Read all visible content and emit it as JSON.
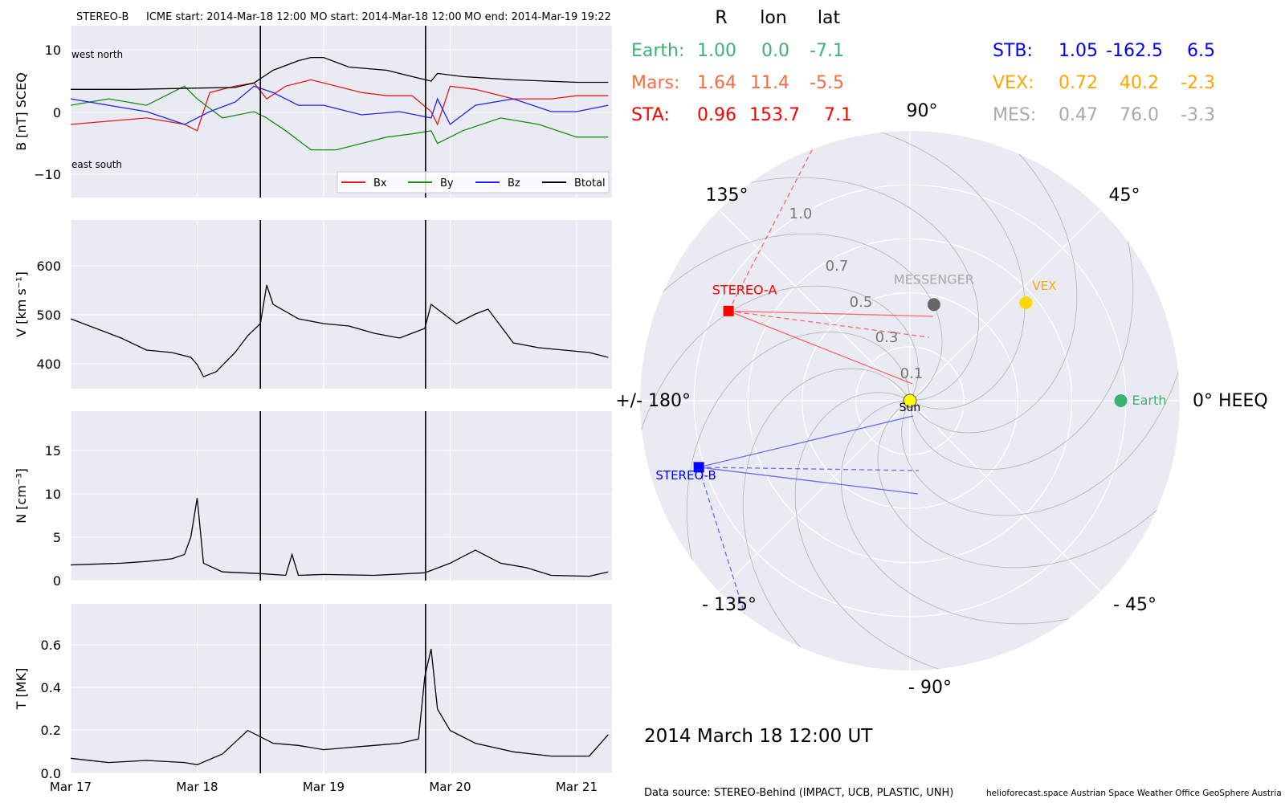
{
  "header": {
    "spacecraft": "STEREO-B",
    "icme_start": "ICME start: 2014-Mar-18 12:00",
    "mo_start": "MO start: 2014-Mar-18 12:00",
    "mo_end": "MO end: 2014-Mar-19 19:22"
  },
  "colors": {
    "panel_bg": "#eaeaf2",
    "grid": "#ffffff",
    "bx": "#e41a1c",
    "by": "#1a8a1a",
    "bz": "#1f1fff",
    "btotal": "#000000",
    "earth": "#3cb371",
    "mars": "#f46d43",
    "sta": "#ff0000",
    "stb": "#0000ff",
    "vex": "#ffa500",
    "mes": "#a9a9a9",
    "sun": "#ffff00"
  },
  "chart_data": [
    {
      "type": "line",
      "ylabel": "B [nT] SCEQ",
      "ylim": [
        -13.5,
        13.5
      ],
      "yticks": [
        "10",
        "0",
        "−10"
      ],
      "annotations": {
        "top_left": "west    north",
        "bottom_left": "east    south"
      },
      "legend_placement": "bottom-right",
      "grid": true,
      "series": [
        {
          "name": "Bx",
          "points": [
            [
              0,
              -2
            ],
            [
              0.3,
              -1.5
            ],
            [
              0.6,
              -1
            ],
            [
              0.9,
              -2
            ],
            [
              1.0,
              -3
            ],
            [
              1.1,
              3
            ],
            [
              1.3,
              4
            ],
            [
              1.45,
              4.5
            ],
            [
              1.55,
              2
            ],
            [
              1.7,
              4
            ],
            [
              1.9,
              5
            ],
            [
              2.1,
              4
            ],
            [
              2.3,
              3
            ],
            [
              2.5,
              2.5
            ],
            [
              2.7,
              2.5
            ],
            [
              2.85,
              0
            ],
            [
              2.9,
              -2
            ],
            [
              3.0,
              4
            ],
            [
              3.2,
              3.5
            ],
            [
              3.5,
              2
            ],
            [
              3.8,
              2
            ],
            [
              4.0,
              2.5
            ],
            [
              4.25,
              2.5
            ]
          ]
        },
        {
          "name": "By",
          "points": [
            [
              0,
              1
            ],
            [
              0.3,
              2
            ],
            [
              0.6,
              1
            ],
            [
              0.9,
              4
            ],
            [
              1.0,
              2
            ],
            [
              1.2,
              -1
            ],
            [
              1.45,
              0
            ],
            [
              1.55,
              -1
            ],
            [
              1.7,
              -3
            ],
            [
              1.9,
              -6
            ],
            [
              2.1,
              -6
            ],
            [
              2.3,
              -5
            ],
            [
              2.5,
              -4
            ],
            [
              2.7,
              -3.5
            ],
            [
              2.85,
              -3
            ],
            [
              2.9,
              -5
            ],
            [
              3.1,
              -3
            ],
            [
              3.4,
              -1
            ],
            [
              3.7,
              -2
            ],
            [
              4.0,
              -4
            ],
            [
              4.25,
              -4
            ]
          ]
        },
        {
          "name": "Bz",
          "points": [
            [
              0,
              2
            ],
            [
              0.3,
              1
            ],
            [
              0.6,
              0
            ],
            [
              0.9,
              -2
            ],
            [
              1.1,
              0
            ],
            [
              1.3,
              1.5
            ],
            [
              1.45,
              4
            ],
            [
              1.6,
              3
            ],
            [
              1.8,
              1
            ],
            [
              2.0,
              1
            ],
            [
              2.3,
              -0.5
            ],
            [
              2.6,
              0
            ],
            [
              2.85,
              -1
            ],
            [
              2.9,
              2
            ],
            [
              3.0,
              -2
            ],
            [
              3.2,
              1
            ],
            [
              3.5,
              2
            ],
            [
              3.8,
              0
            ],
            [
              4.0,
              0
            ],
            [
              4.25,
              1
            ]
          ]
        },
        {
          "name": "Btotal",
          "points": [
            [
              0,
              3.5
            ],
            [
              0.5,
              3.5
            ],
            [
              1.0,
              3.7
            ],
            [
              1.3,
              3.8
            ],
            [
              1.45,
              4.5
            ],
            [
              1.6,
              6.5
            ],
            [
              1.8,
              8
            ],
            [
              1.9,
              8.5
            ],
            [
              2.0,
              8.5
            ],
            [
              2.2,
              7
            ],
            [
              2.5,
              6.5
            ],
            [
              2.7,
              5.5
            ],
            [
              2.85,
              4.8
            ],
            [
              2.9,
              6
            ],
            [
              3.1,
              5.5
            ],
            [
              3.5,
              5
            ],
            [
              4.0,
              4.6
            ],
            [
              4.25,
              4.6
            ]
          ]
        }
      ]
    },
    {
      "type": "line",
      "ylabel": "V [km s⁻¹]",
      "ylim": [
        345,
        695
      ],
      "yticks": [
        "600",
        "500",
        "400"
      ],
      "grid": true,
      "series": [
        {
          "points": [
            [
              0,
              490
            ],
            [
              0.2,
              470
            ],
            [
              0.4,
              450
            ],
            [
              0.6,
              425
            ],
            [
              0.8,
              420
            ],
            [
              0.95,
              410
            ],
            [
              1.0,
              395
            ],
            [
              1.05,
              370
            ],
            [
              1.15,
              380
            ],
            [
              1.3,
              420
            ],
            [
              1.4,
              455
            ],
            [
              1.5,
              480
            ],
            [
              1.55,
              560
            ],
            [
              1.6,
              520
            ],
            [
              1.8,
              490
            ],
            [
              2.0,
              480
            ],
            [
              2.2,
              475
            ],
            [
              2.4,
              460
            ],
            [
              2.6,
              450
            ],
            [
              2.8,
              470
            ],
            [
              2.85,
              520
            ],
            [
              2.95,
              500
            ],
            [
              3.05,
              480
            ],
            [
              3.2,
              500
            ],
            [
              3.3,
              510
            ],
            [
              3.5,
              440
            ],
            [
              3.7,
              430
            ],
            [
              3.9,
              425
            ],
            [
              4.1,
              420
            ],
            [
              4.25,
              410
            ]
          ]
        }
      ]
    },
    {
      "type": "line",
      "ylabel": "N [cm⁻³]",
      "ylim": [
        0,
        19.5
      ],
      "yticks": [
        "15",
        "10",
        "5",
        "0"
      ],
      "grid": true,
      "series": [
        {
          "points": [
            [
              0,
              1.8
            ],
            [
              0.4,
              2
            ],
            [
              0.6,
              2.2
            ],
            [
              0.8,
              2.5
            ],
            [
              0.9,
              3
            ],
            [
              0.95,
              5
            ],
            [
              1.0,
              9.5
            ],
            [
              1.05,
              2
            ],
            [
              1.2,
              1
            ],
            [
              1.5,
              0.8
            ],
            [
              1.7,
              0.6
            ],
            [
              1.75,
              3
            ],
            [
              1.8,
              0.6
            ],
            [
              2.0,
              0.7
            ],
            [
              2.4,
              0.6
            ],
            [
              2.8,
              0.9
            ],
            [
              3.0,
              2
            ],
            [
              3.2,
              3.5
            ],
            [
              3.4,
              2
            ],
            [
              3.6,
              1.5
            ],
            [
              3.8,
              0.6
            ],
            [
              4.1,
              0.5
            ],
            [
              4.25,
              1
            ]
          ]
        }
      ]
    },
    {
      "type": "line",
      "ylabel": "T [MK]",
      "ylim": [
        0,
        0.79
      ],
      "yticks": [
        "0.6",
        "0.4",
        "0.2",
        "0.0"
      ],
      "xticks": [
        "Mar 17",
        "Mar 18",
        "Mar 19",
        "Mar 20",
        "Mar 21"
      ],
      "grid": true,
      "series": [
        {
          "points": [
            [
              0,
              0.07
            ],
            [
              0.3,
              0.05
            ],
            [
              0.6,
              0.06
            ],
            [
              0.9,
              0.05
            ],
            [
              1.0,
              0.04
            ],
            [
              1.2,
              0.09
            ],
            [
              1.4,
              0.2
            ],
            [
              1.6,
              0.14
            ],
            [
              1.8,
              0.13
            ],
            [
              2.0,
              0.11
            ],
            [
              2.2,
              0.12
            ],
            [
              2.4,
              0.13
            ],
            [
              2.6,
              0.14
            ],
            [
              2.75,
              0.16
            ],
            [
              2.8,
              0.45
            ],
            [
              2.85,
              0.58
            ],
            [
              2.9,
              0.3
            ],
            [
              3.0,
              0.2
            ],
            [
              3.2,
              0.14
            ],
            [
              3.5,
              0.1
            ],
            [
              3.8,
              0.08
            ],
            [
              4.1,
              0.08
            ],
            [
              4.25,
              0.18
            ]
          ]
        }
      ]
    },
    {
      "type": "scatter",
      "title": "polar",
      "angle_labels": [
        "90°",
        "45°",
        "0° HEEQ",
        "- 45°",
        "- 90°",
        "- 135°",
        "+/- 180°",
        "135°"
      ],
      "radial_labels": [
        "0.1",
        "0.3",
        "0.5",
        "0.7",
        "1.0"
      ],
      "bodies": [
        {
          "name": "Sun",
          "r": 0.0,
          "lon": 0
        },
        {
          "name": "Earth",
          "r": 1.0,
          "lon": 0.0
        },
        {
          "name": "VEX",
          "r": 0.72,
          "lon": 40.2
        },
        {
          "name": "MESSENGER",
          "r": 0.47,
          "lon": 76.0
        },
        {
          "name": "STEREO-A",
          "r": 0.96,
          "lon": 153.7
        },
        {
          "name": "STEREO-B",
          "r": 1.05,
          "lon": -162.5
        }
      ]
    }
  ],
  "positions": {
    "headers": [
      "R",
      "lon",
      "lat"
    ],
    "rows": [
      {
        "label": "Earth:",
        "R": "1.00",
        "lon": "0.0",
        "lat": "-7.1"
      },
      {
        "label": "Mars:",
        "R": "1.64",
        "lon": "11.4",
        "lat": "-5.5"
      },
      {
        "label": "STA:",
        "R": "0.96",
        "lon": "153.7",
        "lat": "7.1"
      },
      {
        "label": "STB:",
        "R": "1.05",
        "lon": "-162.5",
        "lat": "6.5"
      },
      {
        "label": "VEX:",
        "R": "0.72",
        "lon": "40.2",
        "lat": "-2.3"
      },
      {
        "label": "MES:",
        "R": "0.47",
        "lon": "76.0",
        "lat": "-3.3"
      }
    ]
  },
  "date_label": "2014 March 18  12:00 UT",
  "footer": {
    "source": "Data source: STEREO-Behind (IMPACT, UCB, PLASTIC, UNH)",
    "credits": "helioforecast.space   Austrian Space Weather Office   GeoSphere Austria"
  }
}
